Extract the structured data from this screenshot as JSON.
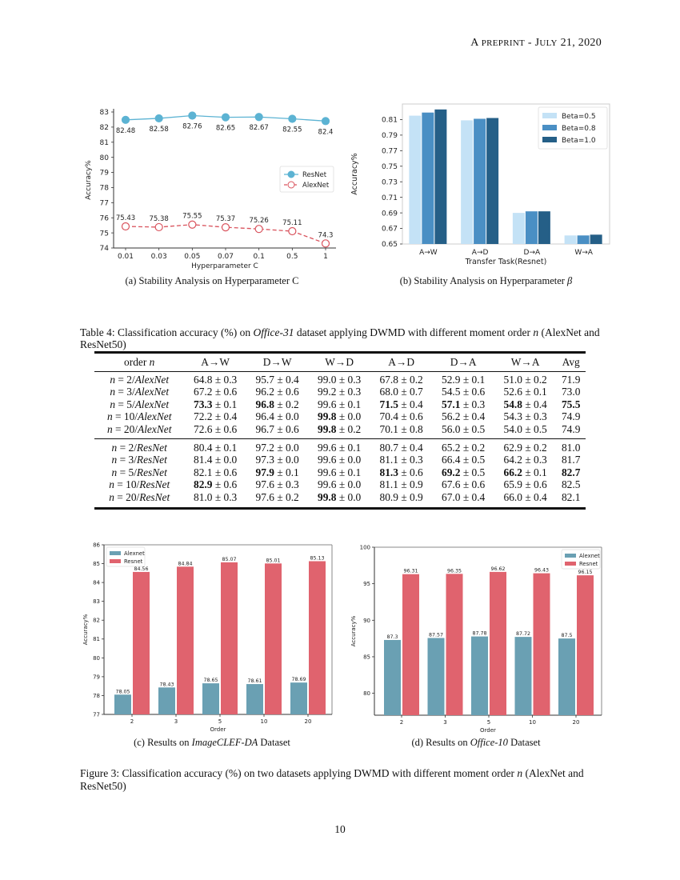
{
  "header": {
    "first": "A",
    "rest": " PREPRINT",
    "sep": " - ",
    "date_first": "J",
    "date_rest": "ULY",
    "date_tail": " 21, 2020"
  },
  "figures": {
    "a_caption": "(a) Stability Analysis on Hyperparameter C",
    "b_caption_prefix": "(b) Stability Analysis on Hyperparameter ",
    "b_caption_symbol": "β",
    "c_caption_prefix": "(c) Results on ",
    "c_caption_italic": "ImageCLEF-DA",
    "c_caption_suffix": " Dataset",
    "d_caption_prefix": "(d) Results on ",
    "d_caption_italic": "Office-10",
    "d_caption_suffix": " Dataset",
    "fig3_prefix": "Figure 3: Classification accuracy (%) on two datasets applying DWMD with different moment order ",
    "fig3_var": "n",
    "fig3_suffix": " (AlexNet and ResNet50)"
  },
  "chart_data": [
    {
      "type": "line",
      "xlabel": "Hyperparameter C",
      "ylabel": "Accuracy%",
      "categories": [
        "0.01",
        "0.03",
        "0.05",
        "0.07",
        "0.1",
        "0.5",
        "1"
      ],
      "ylim": [
        74,
        83
      ],
      "yticks": [
        74,
        75,
        76,
        77,
        78,
        79,
        80,
        81,
        82,
        83
      ],
      "legend": "center-right",
      "grid": false,
      "series": [
        {
          "name": "ResNet",
          "values": [
            82.48,
            82.58,
            82.76,
            82.65,
            82.67,
            82.55,
            82.4
          ],
          "labels": [
            "82.48",
            "82.58",
            "82.76",
            "82.65",
            "82.67",
            "82.55",
            "82.4"
          ],
          "color": "#5cb3d3",
          "style": "solid",
          "marker": "filled-circle"
        },
        {
          "name": "AlexNet",
          "values": [
            75.43,
            75.38,
            75.55,
            75.37,
            75.26,
            75.11,
            74.3
          ],
          "labels": [
            "75.43",
            "75.38",
            "75.55",
            "75.37",
            "75.26",
            "75.11",
            "74.3"
          ],
          "color": "#d9535d",
          "style": "dashed",
          "marker": "open-circle"
        }
      ]
    },
    {
      "type": "bar",
      "xlabel": "Transfer Task(Resnet)",
      "ylabel": "Accuracy%",
      "categories": [
        "A→W",
        "A→D",
        "D→A",
        "W→A"
      ],
      "ylim": [
        0.65,
        0.83
      ],
      "yticks": [
        "0.65",
        "0.67",
        "0.69",
        "0.71",
        "0.73",
        "0.75",
        "0.77",
        "0.79",
        "0.81"
      ],
      "legend": "top-right",
      "grid": false,
      "series": [
        {
          "name": "Beta=0.5",
          "values": [
            0.815,
            0.809,
            0.69,
            0.661
          ],
          "color": "#c4e2f6"
        },
        {
          "name": "Beta=0.8",
          "values": [
            0.819,
            0.811,
            0.692,
            0.661
          ],
          "color": "#4a8fc4"
        },
        {
          "name": "Beta=1.0",
          "values": [
            0.823,
            0.812,
            0.692,
            0.662
          ],
          "color": "#255f87"
        }
      ]
    },
    {
      "type": "bar",
      "xlabel": "Order",
      "ylabel": "Accuracy%",
      "categories": [
        "2",
        "3",
        "5",
        "10",
        "20"
      ],
      "ylim": [
        77,
        86
      ],
      "yticks": [
        "77",
        "78",
        "79",
        "80",
        "81",
        "82",
        "83",
        "84",
        "85",
        "86"
      ],
      "legend": "top-left",
      "grid": false,
      "series": [
        {
          "name": "Alexnet",
          "values": [
            78.05,
            78.43,
            78.65,
            78.61,
            78.69
          ],
          "labels": [
            "78.05",
            "78.43",
            "78.65",
            "78.61",
            "78.69"
          ],
          "color": "#6aa0b3"
        },
        {
          "name": "Resnet",
          "values": [
            84.56,
            84.84,
            85.07,
            85.01,
            85.13
          ],
          "labels": [
            "84.56",
            "84.84",
            "85.07",
            "85.01",
            "85.13"
          ],
          "color": "#e0636e"
        }
      ]
    },
    {
      "type": "bar",
      "xlabel": "Order",
      "ylabel": "Accuracy%",
      "categories": [
        "2",
        "3",
        "5",
        "10",
        "20"
      ],
      "ylim": [
        77,
        100
      ],
      "yticks": [
        "80",
        "85",
        "90",
        "95",
        "100"
      ],
      "legend": "top-right",
      "grid": false,
      "series": [
        {
          "name": "Alexnet",
          "values": [
            87.3,
            87.57,
            87.78,
            87.72,
            87.5
          ],
          "labels": [
            "87.3",
            "87.57",
            "87.78",
            "87.72",
            "87.5"
          ],
          "color": "#6aa0b3"
        },
        {
          "name": "Resnet",
          "values": [
            96.31,
            96.35,
            96.62,
            96.43,
            96.15
          ],
          "labels": [
            "96.31",
            "96.35",
            "96.62",
            "96.43",
            "96.15"
          ],
          "color": "#e0636e"
        }
      ]
    }
  ],
  "table": {
    "caption_prefix": "Table 4: Classification accuracy (%) on ",
    "caption_italic": "Office-31",
    "caption_middle": " dataset applying DWMD with different moment order ",
    "caption_var": "n",
    "caption_suffix": " (AlexNet and ResNet50)",
    "header_order": "order ",
    "var": "n",
    "pm": "±",
    "columns": [
      "A→W",
      "D→W",
      "W→D",
      "A→D",
      "D→A",
      "W→A",
      "Avg"
    ],
    "groups": [
      [
        {
          "n": "2",
          "model": "AlexNet",
          "cells": [
            [
              "64.8",
              "0.3",
              false
            ],
            [
              "95.7",
              "0.4",
              false
            ],
            [
              "99.0",
              "0.3",
              false
            ],
            [
              "67.8",
              "0.2",
              false
            ],
            [
              "52.9",
              "0.1",
              false
            ],
            [
              "51.0",
              "0.2",
              false
            ]
          ],
          "avg": "71.9",
          "avg_bold": false
        },
        {
          "n": "3",
          "model": "AlexNet",
          "cells": [
            [
              "67.2",
              "0.6",
              false
            ],
            [
              "96.2",
              "0.6",
              false
            ],
            [
              "99.2",
              "0.3",
              false
            ],
            [
              "68.0",
              "0.7",
              false
            ],
            [
              "54.5",
              "0.6",
              false
            ],
            [
              "52.6",
              "0.1",
              false
            ]
          ],
          "avg": "73.0",
          "avg_bold": false
        },
        {
          "n": "5",
          "model": "AlexNet",
          "cells": [
            [
              "73.3",
              "0.1",
              true
            ],
            [
              "96.8",
              "0.2",
              true
            ],
            [
              "99.6",
              "0.1",
              false
            ],
            [
              "71.5",
              "0.4",
              true
            ],
            [
              "57.1",
              "0.3",
              true
            ],
            [
              "54.8",
              "0.4",
              true
            ]
          ],
          "avg": "75.5",
          "avg_bold": true
        },
        {
          "n": "10",
          "model": "AlexNet",
          "cells": [
            [
              "72.2",
              "0.4",
              false
            ],
            [
              "96.4",
              "0.0",
              false
            ],
            [
              "99.8",
              "0.0",
              true
            ],
            [
              "70.4",
              "0.6",
              false
            ],
            [
              "56.2",
              "0.4",
              false
            ],
            [
              "54.3",
              "0.3",
              false
            ]
          ],
          "avg": "74.9",
          "avg_bold": false
        },
        {
          "n": "20",
          "model": "AlexNet",
          "cells": [
            [
              "72.6",
              "0.6",
              false
            ],
            [
              "96.7",
              "0.6",
              false
            ],
            [
              "99.8",
              "0.2",
              true
            ],
            [
              "70.1",
              "0.8",
              false
            ],
            [
              "56.0",
              "0.5",
              false
            ],
            [
              "54.0",
              "0.5",
              false
            ]
          ],
          "avg": "74.9",
          "avg_bold": false
        }
      ],
      [
        {
          "n": "2",
          "model": "ResNet",
          "cells": [
            [
              "80.4",
              "0.1",
              false
            ],
            [
              "97.2",
              "0.0",
              false
            ],
            [
              "99.6",
              "0.1",
              false
            ],
            [
              "80.7",
              "0.4",
              false
            ],
            [
              "65.2",
              "0.2",
              false
            ],
            [
              "62.9",
              "0.2",
              false
            ]
          ],
          "avg": "81.0",
          "avg_bold": false
        },
        {
          "n": "3",
          "model": "ResNet",
          "cells": [
            [
              "81.4",
              "0.0",
              false
            ],
            [
              "97.3",
              "0.0",
              false
            ],
            [
              "99.6",
              "0.0",
              false
            ],
            [
              "81.1",
              "0.3",
              false
            ],
            [
              "66.4",
              "0.5",
              false
            ],
            [
              "64.2",
              "0.3",
              false
            ]
          ],
          "avg": "81.7",
          "avg_bold": false
        },
        {
          "n": "5",
          "model": "ResNet",
          "cells": [
            [
              "82.1",
              "0.6",
              false
            ],
            [
              "97.9",
              "0.1",
              true
            ],
            [
              "99.6",
              "0.1",
              false
            ],
            [
              "81.3",
              "0.6",
              true
            ],
            [
              "69.2",
              "0.5",
              true
            ],
            [
              "66.2",
              "0.1",
              true
            ]
          ],
          "avg": "82.7",
          "avg_bold": true
        },
        {
          "n": "10",
          "model": "ResNet",
          "cells": [
            [
              "82.9",
              "0.6",
              true
            ],
            [
              "97.6",
              "0.3",
              false
            ],
            [
              "99.6",
              "0.0",
              false
            ],
            [
              "81.1",
              "0.9",
              false
            ],
            [
              "67.6",
              "0.6",
              false
            ],
            [
              "65.9",
              "0.6",
              false
            ]
          ],
          "avg": "82.5",
          "avg_bold": false
        },
        {
          "n": "20",
          "model": "ResNet",
          "cells": [
            [
              "81.0",
              "0.3",
              false
            ],
            [
              "97.6",
              "0.2",
              false
            ],
            [
              "99.8",
              "0.0",
              true
            ],
            [
              "80.9",
              "0.9",
              false
            ],
            [
              "67.0",
              "0.4",
              false
            ],
            [
              "66.0",
              "0.4",
              false
            ]
          ],
          "avg": "82.1",
          "avg_bold": false
        }
      ]
    ]
  },
  "page_number": "10"
}
